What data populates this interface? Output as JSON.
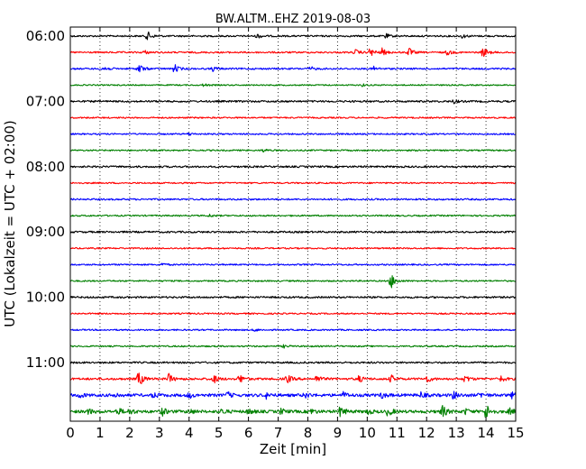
{
  "chart_data": {
    "type": "line",
    "title": "BW.ALTM..EHZ 2019-08-03",
    "xlabel": "Zeit  [min]",
    "ylabel": "UTC (Lokalzeit = UTC + 02:00)",
    "xlim": [
      0,
      15
    ],
    "x_ticks": [
      "0",
      "1",
      "2",
      "3",
      "4",
      "5",
      "6",
      "7",
      "8",
      "9",
      "10",
      "11",
      "12",
      "13",
      "14",
      "15"
    ],
    "y_tick_labels": [
      "06:00",
      "07:00",
      "08:00",
      "09:00",
      "10:00",
      "11:00"
    ],
    "grid": "vertical dotted",
    "trace_interval_minutes": 15,
    "colors": [
      "#000000",
      "#ff0000",
      "#0000ff",
      "#008000"
    ],
    "series": [
      {
        "start": "06:00",
        "noise": 0.9,
        "events": [
          [
            2.6,
            5
          ],
          [
            6.3,
            2.5
          ],
          [
            10.6,
            3
          ],
          [
            13.2,
            2
          ]
        ]
      },
      {
        "start": "06:15",
        "noise": 0.9,
        "events": [
          [
            2.5,
            2
          ],
          [
            9.6,
            3
          ],
          [
            10.1,
            5
          ],
          [
            10.5,
            4
          ],
          [
            11.4,
            5
          ],
          [
            12.7,
            3
          ],
          [
            13.9,
            6
          ]
        ]
      },
      {
        "start": "06:30",
        "noise": 0.9,
        "events": [
          [
            1.1,
            4
          ],
          [
            2.3,
            6
          ],
          [
            3.5,
            5
          ],
          [
            4.8,
            2.5
          ],
          [
            8.1,
            2
          ],
          [
            10.2,
            2.5
          ]
        ]
      },
      {
        "start": "06:45",
        "noise": 0.7,
        "events": [
          [
            4.5,
            1.5
          ],
          [
            9.8,
            1.5
          ]
        ]
      },
      {
        "start": "07:00",
        "noise": 1.0,
        "events": [
          [
            12.9,
            2
          ]
        ]
      },
      {
        "start": "07:15",
        "noise": 0.8,
        "events": []
      },
      {
        "start": "07:30",
        "noise": 0.8,
        "events": [
          [
            4.0,
            1.5
          ]
        ]
      },
      {
        "start": "07:45",
        "noise": 0.8,
        "events": [
          [
            6.5,
            1.5
          ]
        ]
      },
      {
        "start": "08:00",
        "noise": 1.0,
        "events": []
      },
      {
        "start": "08:15",
        "noise": 0.8,
        "events": []
      },
      {
        "start": "08:30",
        "noise": 0.9,
        "events": []
      },
      {
        "start": "08:45",
        "noise": 0.8,
        "events": [
          [
            4.7,
            1.5
          ]
        ]
      },
      {
        "start": "09:00",
        "noise": 1.0,
        "events": []
      },
      {
        "start": "09:15",
        "noise": 0.8,
        "events": []
      },
      {
        "start": "09:30",
        "noise": 0.8,
        "events": [
          [
            3.1,
            1.5
          ]
        ]
      },
      {
        "start": "09:45",
        "noise": 0.8,
        "events": [
          [
            10.8,
            9
          ]
        ]
      },
      {
        "start": "10:00",
        "noise": 1.0,
        "events": []
      },
      {
        "start": "10:15",
        "noise": 0.8,
        "events": []
      },
      {
        "start": "10:30",
        "noise": 0.8,
        "events": [
          [
            6.2,
            1.5
          ]
        ]
      },
      {
        "start": "10:45",
        "noise": 0.8,
        "events": [
          [
            7.2,
            1.5
          ]
        ]
      },
      {
        "start": "11:00",
        "noise": 1.0,
        "events": []
      },
      {
        "start": "11:15",
        "noise": 1.2,
        "events": [
          [
            2.3,
            9
          ],
          [
            3.3,
            6
          ],
          [
            4.8,
            6
          ],
          [
            5.7,
            5
          ],
          [
            7.3,
            5
          ],
          [
            8.3,
            4
          ],
          [
            9.7,
            4
          ],
          [
            10.8,
            4
          ],
          [
            12.0,
            4
          ],
          [
            13.3,
            4
          ],
          [
            14.5,
            3
          ]
        ]
      },
      {
        "start": "11:30",
        "noise": 1.6,
        "events": [
          [
            0.3,
            3
          ],
          [
            1.5,
            3
          ],
          [
            2.8,
            3
          ],
          [
            4.0,
            3
          ],
          [
            5.3,
            3
          ],
          [
            6.6,
            3
          ],
          [
            7.9,
            3
          ],
          [
            9.2,
            3
          ],
          [
            10.5,
            3
          ],
          [
            11.8,
            3
          ],
          [
            12.9,
            4
          ],
          [
            13.8,
            3
          ],
          [
            14.9,
            4
          ]
        ]
      },
      {
        "start": "11:45",
        "noise": 1.6,
        "events": [
          [
            0.6,
            3
          ],
          [
            1.6,
            4
          ],
          [
            2.0,
            3
          ],
          [
            3.1,
            4
          ],
          [
            4.0,
            3
          ],
          [
            5.1,
            3
          ],
          [
            6.0,
            3
          ],
          [
            7.1,
            3
          ],
          [
            8.1,
            3
          ],
          [
            9.1,
            6
          ],
          [
            10.0,
            3
          ],
          [
            10.7,
            5
          ],
          [
            12.5,
            8
          ],
          [
            13.3,
            3
          ],
          [
            14.0,
            9
          ],
          [
            14.8,
            3
          ]
        ]
      }
    ]
  }
}
